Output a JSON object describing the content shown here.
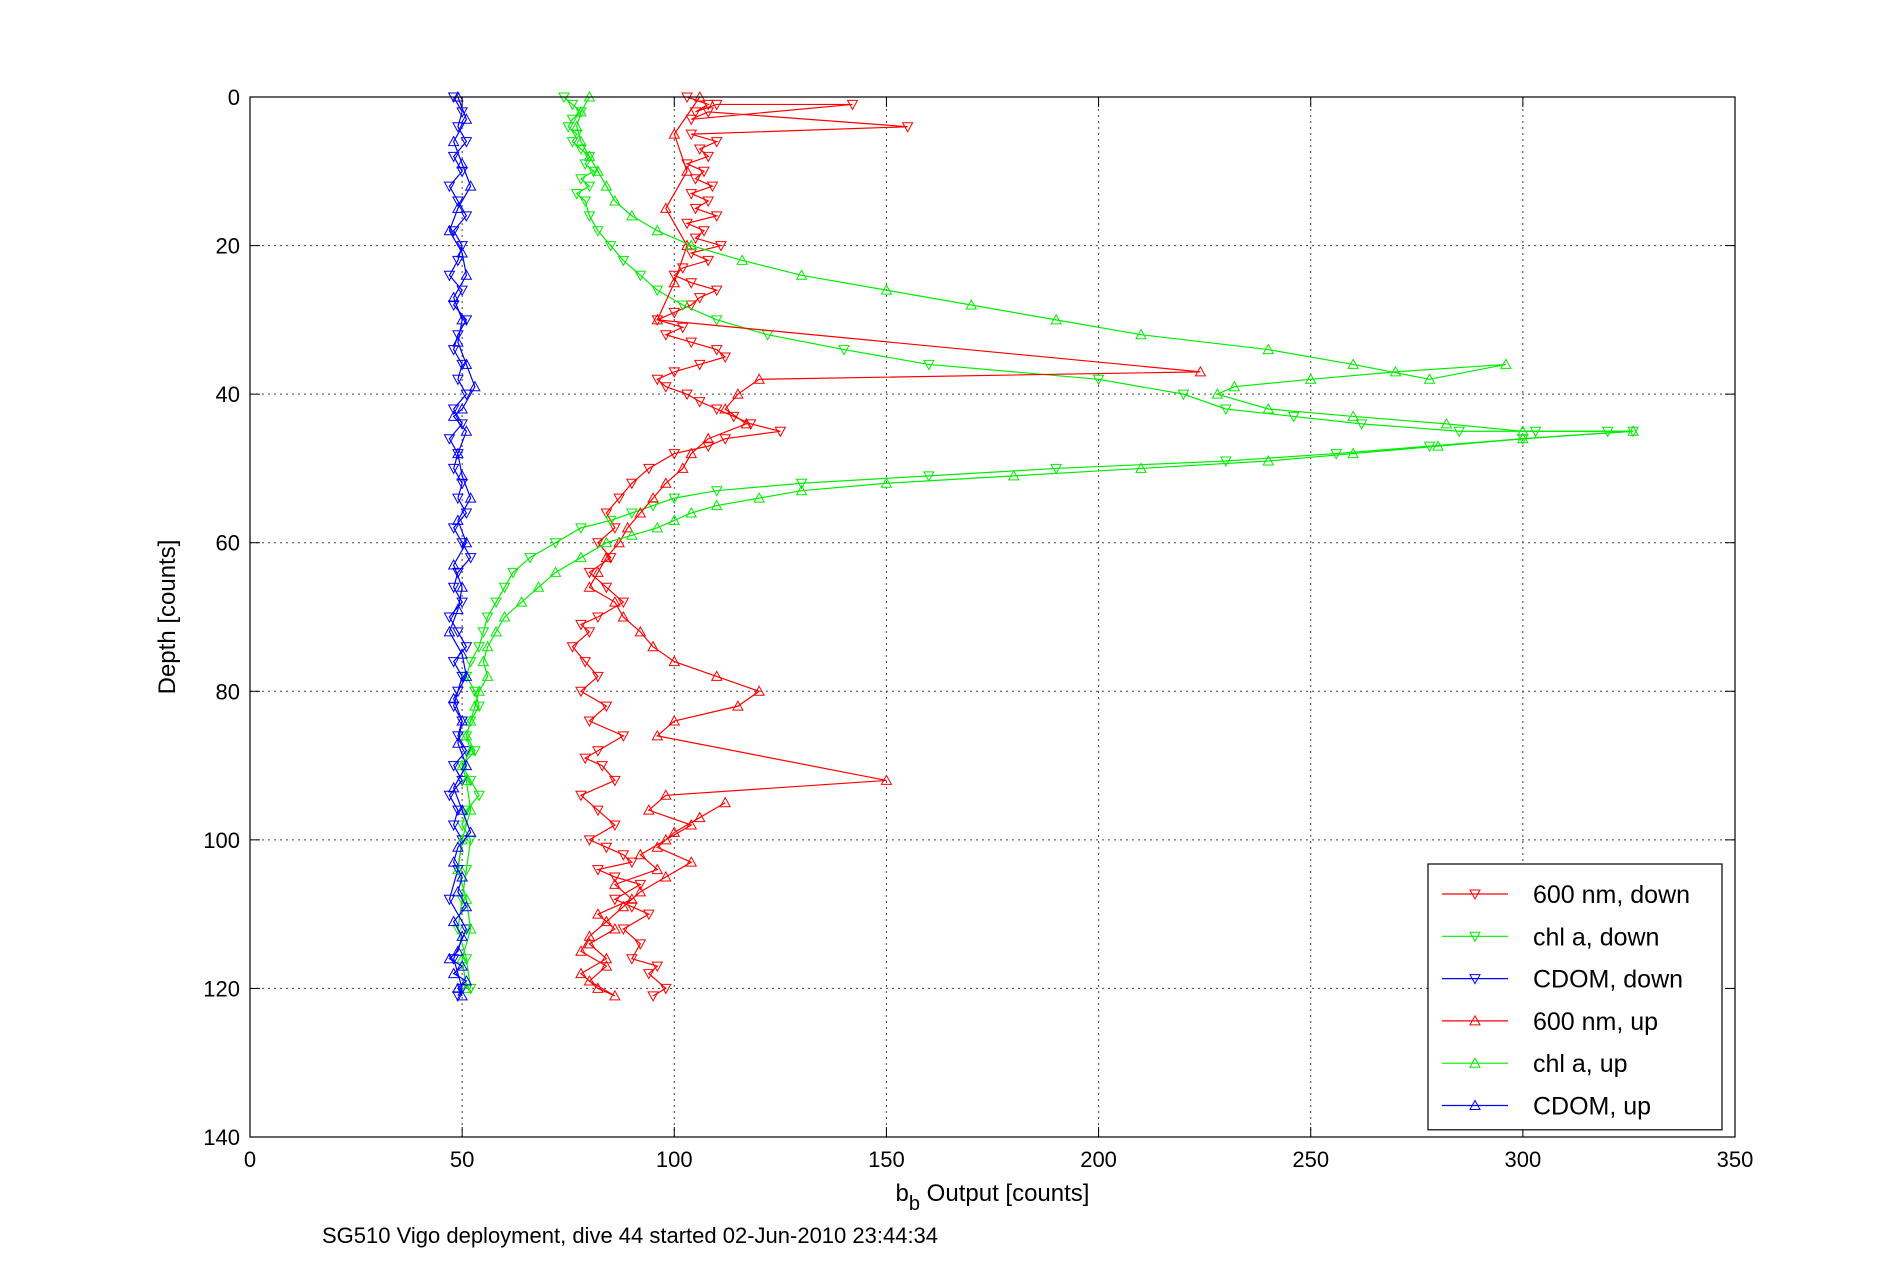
{
  "chart_data": {
    "type": "line",
    "title": "",
    "xlabel": "b",
    "xlabel_sub": "b",
    "xlabel_rest": " Output [counts]",
    "ylabel": "Depth [counts]",
    "caption": "SG510 Vigo deployment, dive 44 started 02-Jun-2010 23:44:34",
    "xlim": [
      0,
      350
    ],
    "ylim": [
      0,
      140
    ],
    "y_reversed": true,
    "grid": true,
    "xticks": [
      0,
      50,
      100,
      150,
      200,
      250,
      300,
      350
    ],
    "yticks": [
      0,
      20,
      40,
      60,
      80,
      100,
      120,
      140
    ],
    "legend_position": "bottom-right",
    "series": [
      {
        "name": "600 nm, down",
        "color": "#ff0000",
        "marker": "triangle-down",
        "x": [
          103,
          108,
          105,
          110,
          142,
          104,
          108,
          155,
          104,
          110,
          106,
          108,
          103,
          107,
          105,
          109,
          104,
          108,
          105,
          110,
          103,
          107,
          105,
          111,
          104,
          108,
          102,
          100,
          104,
          110,
          106,
          104,
          100,
          96,
          102,
          98,
          104,
          110,
          112,
          106,
          100,
          96,
          98,
          103,
          106,
          110,
          114,
          118,
          125,
          112,
          108,
          100,
          94,
          90,
          87,
          84,
          86,
          82,
          85,
          80,
          84,
          88,
          82,
          78,
          80,
          76,
          79,
          82,
          78,
          84,
          80,
          88,
          82,
          79,
          83,
          86,
          78,
          82,
          86,
          80,
          84,
          88,
          90,
          82,
          86,
          92,
          86,
          90,
          94,
          88,
          92,
          90,
          96,
          94,
          98,
          95
        ],
        "y": [
          0,
          1,
          2,
          1,
          1,
          3,
          2,
          4,
          5,
          6,
          7,
          8,
          9,
          10,
          11,
          12,
          13,
          14,
          15,
          16,
          17,
          18,
          19,
          20,
          21,
          22,
          23,
          24,
          25,
          26,
          27,
          28,
          29,
          30,
          31,
          32,
          33,
          34,
          35,
          36,
          37,
          38,
          39,
          40,
          41,
          42,
          43,
          44,
          45,
          46,
          47,
          48,
          50,
          52,
          54,
          56,
          58,
          60,
          62,
          64,
          66,
          68,
          70,
          71,
          72,
          74,
          76,
          78,
          80,
          82,
          84,
          86,
          88,
          89,
          90,
          92,
          94,
          96,
          98,
          100,
          101,
          102,
          103,
          104,
          105,
          106,
          108,
          109,
          110,
          112,
          114,
          116,
          117,
          118,
          120,
          121
        ]
      },
      {
        "name": "chl a, down",
        "color": "#00ee00",
        "marker": "triangle-down",
        "x": [
          74,
          76,
          78,
          76,
          75,
          77,
          76,
          78,
          80,
          79,
          81,
          78,
          80,
          77,
          79,
          80,
          82,
          85,
          88,
          92,
          96,
          102,
          110,
          122,
          140,
          160,
          200,
          220,
          230,
          246,
          262,
          285,
          303,
          320,
          326,
          300,
          278,
          256,
          230,
          190,
          160,
          130,
          110,
          100,
          95,
          90,
          85,
          78,
          72,
          66,
          62,
          60,
          58,
          56,
          55,
          54,
          52,
          51,
          53,
          54,
          52,
          51,
          53,
          50,
          52,
          54,
          51,
          50,
          52,
          51,
          50,
          49,
          51,
          52
        ],
        "y": [
          0,
          1,
          2,
          3,
          4,
          5,
          6,
          7,
          8,
          9,
          10,
          11,
          12,
          13,
          14,
          16,
          18,
          20,
          22,
          24,
          26,
          28,
          30,
          32,
          34,
          36,
          38,
          40,
          42,
          43,
          44,
          45,
          45,
          45,
          45,
          46,
          47,
          48,
          49,
          50,
          51,
          52,
          53,
          54,
          55,
          56,
          57,
          58,
          60,
          62,
          64,
          66,
          68,
          70,
          72,
          74,
          76,
          78,
          80,
          82,
          84,
          86,
          88,
          90,
          92,
          94,
          96,
          98,
          100,
          104,
          108,
          112,
          116,
          120
        ]
      },
      {
        "name": "CDOM, down",
        "color": "#0000ff",
        "marker": "triangle-down",
        "x": [
          48,
          50,
          49,
          51,
          48,
          50,
          47,
          49,
          51,
          48,
          50,
          49,
          47,
          50,
          48,
          51,
          49,
          48,
          50,
          49,
          51,
          48,
          50,
          47,
          49,
          48,
          50,
          49,
          51,
          48,
          50,
          52,
          49,
          48,
          50,
          47,
          49,
          51,
          48,
          50,
          49,
          48,
          50,
          49,
          51,
          48,
          50,
          47,
          49,
          48,
          50,
          49,
          47,
          51,
          48,
          50,
          49
        ],
        "y": [
          0,
          2,
          4,
          6,
          8,
          10,
          12,
          14,
          16,
          18,
          20,
          22,
          24,
          26,
          28,
          30,
          32,
          34,
          36,
          38,
          40,
          42,
          44,
          46,
          48,
          50,
          52,
          54,
          56,
          58,
          60,
          62,
          64,
          66,
          68,
          70,
          72,
          74,
          76,
          78,
          80,
          82,
          84,
          86,
          88,
          90,
          92,
          94,
          96,
          98,
          100,
          104,
          108,
          112,
          116,
          120,
          121
        ]
      },
      {
        "name": "600 nm, up",
        "color": "#ff0000",
        "marker": "triangle-up",
        "x": [
          106,
          100,
          103,
          98,
          103,
          100,
          96,
          224,
          120,
          115,
          112,
          117,
          108,
          104,
          102,
          98,
          95,
          92,
          89,
          87,
          84,
          82,
          80,
          86,
          88,
          92,
          95,
          100,
          110,
          120,
          115,
          100,
          96,
          150,
          98,
          94,
          104,
          98,
          92,
          96,
          86,
          90,
          82,
          86,
          80,
          84,
          78,
          82,
          86,
          80,
          84,
          78,
          80,
          84,
          88,
          92,
          98,
          104,
          96,
          100,
          106,
          112
        ],
        "y": [
          0,
          5,
          10,
          15,
          20,
          25,
          30,
          37,
          38,
          40,
          42,
          44,
          46,
          48,
          50,
          52,
          54,
          56,
          58,
          60,
          62,
          64,
          66,
          68,
          70,
          72,
          74,
          76,
          78,
          80,
          82,
          84,
          86,
          92,
          94,
          96,
          98,
          100,
          102,
          104,
          106,
          108,
          110,
          112,
          114,
          116,
          118,
          120,
          121,
          119,
          117,
          115,
          113,
          111,
          109,
          107,
          105,
          103,
          101,
          99,
          97,
          95
        ]
      },
      {
        "name": "chl a, up",
        "color": "#00ee00",
        "marker": "triangle-up",
        "x": [
          80,
          78,
          77,
          78,
          80,
          82,
          84,
          86,
          90,
          96,
          104,
          116,
          130,
          150,
          170,
          190,
          210,
          240,
          260,
          278,
          296,
          270,
          250,
          232,
          228,
          240,
          260,
          282,
          300,
          326,
          300,
          280,
          260,
          240,
          210,
          180,
          150,
          130,
          120,
          110,
          104,
          100,
          96,
          90,
          84,
          78,
          72,
          68,
          64,
          60,
          58,
          56,
          55,
          56,
          54,
          53,
          52,
          51,
          52,
          50,
          51,
          52,
          50,
          49,
          51,
          52,
          50,
          51
        ],
        "y": [
          0,
          2,
          4,
          6,
          8,
          10,
          12,
          14,
          16,
          18,
          20,
          22,
          24,
          26,
          28,
          30,
          32,
          34,
          36,
          38,
          36,
          37,
          38,
          39,
          40,
          42,
          43,
          44,
          45,
          45,
          46,
          47,
          48,
          49,
          50,
          51,
          52,
          53,
          54,
          55,
          56,
          57,
          58,
          59,
          60,
          62,
          64,
          66,
          68,
          70,
          72,
          74,
          76,
          78,
          80,
          82,
          84,
          86,
          88,
          90,
          92,
          96,
          100,
          104,
          108,
          112,
          116,
          120
        ]
      },
      {
        "name": "CDOM, up",
        "color": "#0000ff",
        "marker": "triangle-up",
        "x": [
          49,
          51,
          48,
          50,
          52,
          49,
          47,
          50,
          51,
          48,
          50,
          49,
          51,
          53,
          50,
          48,
          51,
          49,
          50,
          52,
          49,
          51,
          48,
          50,
          49,
          47,
          50,
          51,
          48,
          50,
          49,
          51,
          48,
          50,
          52,
          49,
          48,
          50,
          49,
          51,
          48,
          50,
          49,
          47,
          50,
          48,
          51,
          49,
          50
        ],
        "y": [
          0,
          3,
          6,
          9,
          12,
          15,
          18,
          21,
          24,
          27,
          30,
          33,
          36,
          39,
          42,
          43,
          45,
          48,
          51,
          54,
          57,
          60,
          63,
          66,
          69,
          72,
          75,
          78,
          81,
          84,
          87,
          90,
          93,
          96,
          99,
          101,
          103,
          105,
          107,
          109,
          111,
          113,
          115,
          116,
          117,
          118,
          119,
          120,
          121
        ]
      }
    ]
  }
}
